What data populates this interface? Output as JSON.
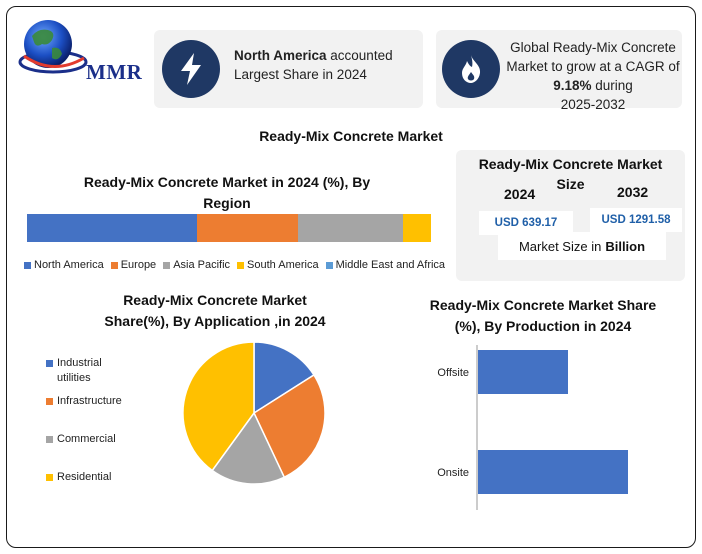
{
  "logo": {
    "text": "MMR",
    "icon": "globe-icon"
  },
  "card1": {
    "icon": "lightning-bolt-icon",
    "bold": "North America",
    "text1": " accounted",
    "text2": "Largest Share in 2024"
  },
  "card2": {
    "icon": "flame-icon",
    "line1": "Global Ready-Mix Concrete",
    "line2": "Market to grow at a CAGR of",
    "cagr": "9.18%",
    "line3": " during",
    "line4": "2025-2032"
  },
  "main_title": "Ready-Mix Concrete Market",
  "market_size": {
    "title_line1": "Ready-Mix Concrete Market",
    "title_line2": "Size",
    "year1": "2024",
    "year2": "2032",
    "value1": "USD 639.17",
    "value2": "USD 1291.58",
    "footer_prefix": "Market Size in",
    "footer_bold": "Billion"
  },
  "colors": {
    "blue": "#4472c4",
    "orange": "#ed7d31",
    "gray": "#a5a5a5",
    "yellow": "#ffc000",
    "lightblue": "#5b9bd5",
    "navy": "#1f3864"
  },
  "chart_data": [
    {
      "type": "bar",
      "orientation": "horizontal-stacked",
      "title_line1": "Ready-Mix Concrete Market in 2024 (%), By",
      "title_line2": "Region",
      "series": [
        {
          "name": "North America",
          "value": 42,
          "color": "#4472c4"
        },
        {
          "name": "Europe",
          "value": 25,
          "color": "#ed7d31"
        },
        {
          "name": "Asia Pacific",
          "value": 26,
          "color": "#a5a5a5"
        },
        {
          "name": "South America",
          "value": 7,
          "color": "#ffc000"
        },
        {
          "name": "Middle East and Africa",
          "value": 0,
          "color": "#5b9bd5"
        }
      ],
      "legend": "bottom"
    },
    {
      "type": "pie",
      "title_line1": "Ready-Mix Concrete Market",
      "title_line2": "Share(%), By Application ,in 2024",
      "slices": [
        {
          "name": "Industrial utilities",
          "label_line1": "Industrial",
          "label_line2": "utilities",
          "value": 16,
          "color": "#4472c4"
        },
        {
          "name": "Infrastructure",
          "label_line1": "Infrastructure",
          "label_line2": "",
          "value": 27,
          "color": "#ed7d31"
        },
        {
          "name": "Commercial",
          "label_line1": "Commercial",
          "label_line2": "",
          "value": 17,
          "color": "#a5a5a5"
        },
        {
          "name": "Residential",
          "label_line1": "Residential",
          "label_line2": "",
          "value": 40,
          "color": "#ffc000"
        }
      ],
      "legend": "left"
    },
    {
      "type": "bar",
      "orientation": "horizontal",
      "title_line1": "Ready-Mix Concrete Market Share",
      "title_line2": "(%), By Production in 2024",
      "categories": [
        "Offsite",
        "Onsite"
      ],
      "values": [
        30,
        50
      ],
      "xlim": [
        0,
        60
      ],
      "color": "#4472c4"
    }
  ]
}
